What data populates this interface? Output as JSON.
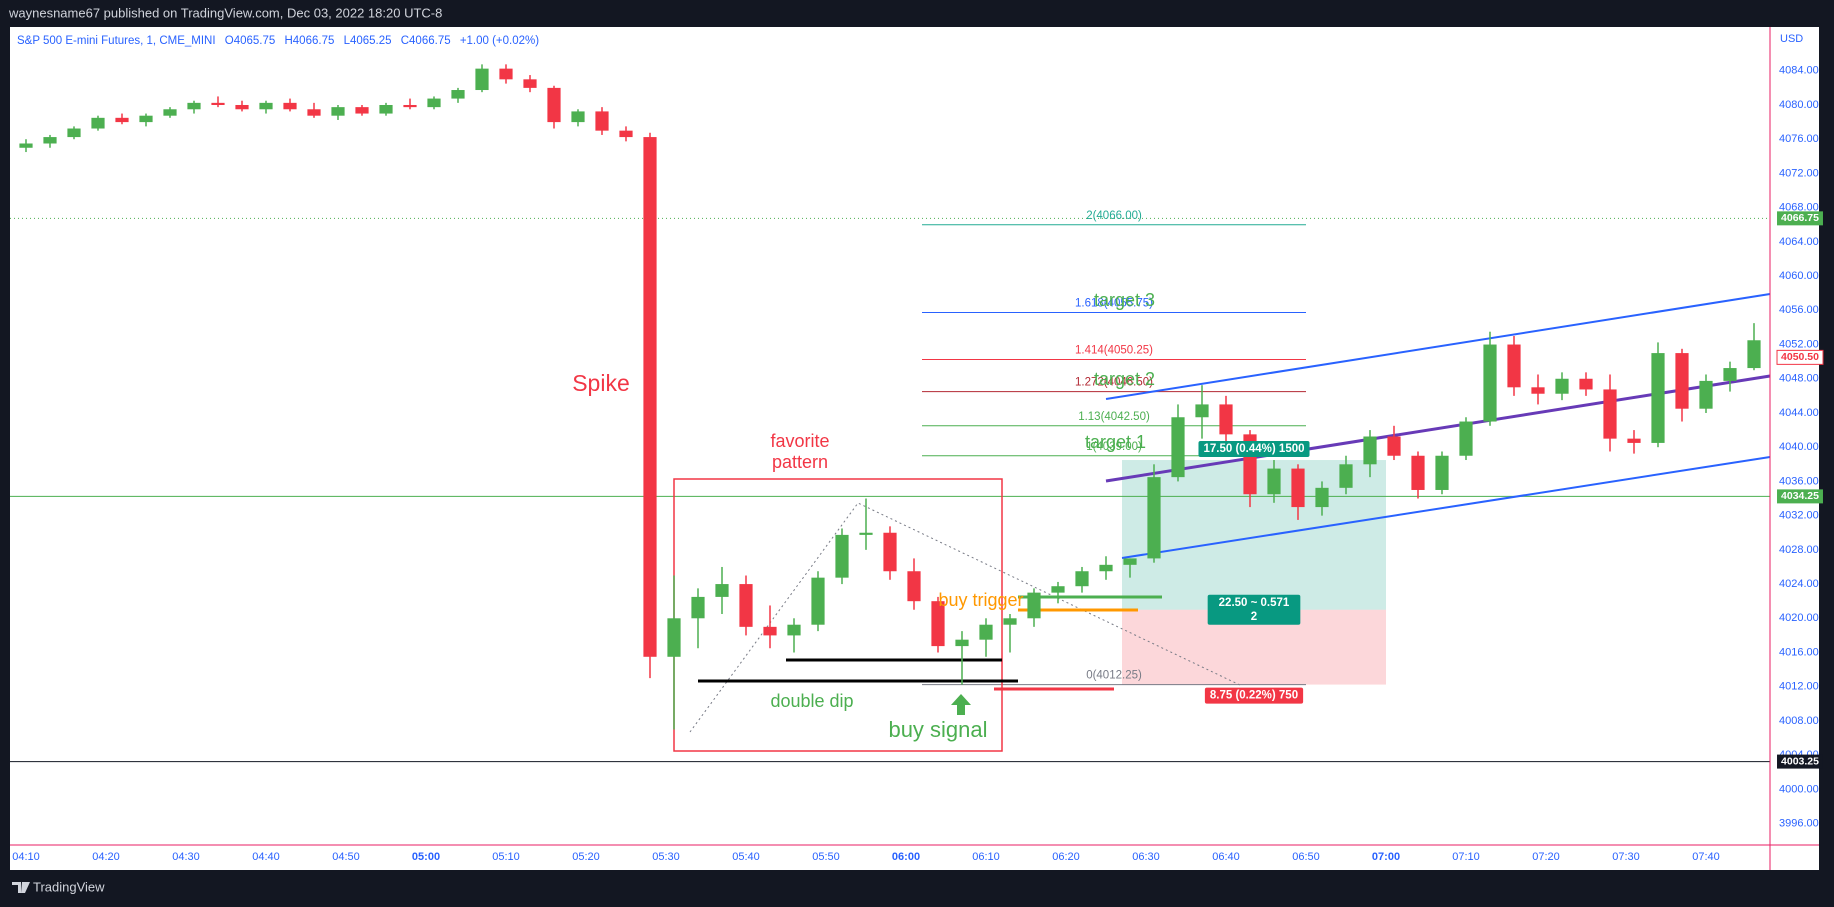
{
  "header": {
    "published": "waynesname67 published on TradingView.com, Dec 03, 2022 18:20 UTC-8"
  },
  "footer": {
    "brand": "TradingView"
  },
  "chart_data": {
    "type": "candlestick",
    "title": "S&P 500 E-mini Futures, 1, CME_MINI",
    "legend_values": [
      "O4065.75",
      "H4066.75",
      "L4065.25",
      "C4066.75",
      "+1.00 (+0.02%)"
    ],
    "currency": "USD",
    "up_color": "#4caf50",
    "down_color": "#f23645",
    "x": [
      "04:10",
      "04:13",
      "04:16",
      "04:19",
      "04:22",
      "04:25",
      "04:28",
      "04:31",
      "04:34",
      "04:37",
      "04:40",
      "04:43",
      "04:46",
      "04:49",
      "04:52",
      "04:55",
      "04:58",
      "05:01",
      "05:04",
      "05:07",
      "05:10",
      "05:13",
      "05:16",
      "05:19",
      "05:22",
      "05:25",
      "05:28",
      "05:31",
      "05:34",
      "05:37",
      "05:40",
      "05:43",
      "05:46",
      "05:49",
      "05:52",
      "05:55",
      "05:58",
      "06:01",
      "06:04",
      "06:07",
      "06:10",
      "06:13",
      "06:16",
      "06:19",
      "06:22",
      "06:25",
      "06:28",
      "06:31",
      "06:34",
      "06:37",
      "06:40",
      "06:43",
      "06:46",
      "06:49",
      "06:52",
      "06:55",
      "06:58",
      "07:01",
      "07:04",
      "07:07",
      "07:10",
      "07:13",
      "07:16",
      "07:19",
      "07:22",
      "07:25",
      "07:28",
      "07:31",
      "07:34",
      "07:37",
      "07:40",
      "07:43",
      "07:46"
    ],
    "open": [
      4075.0,
      4075.5,
      4076.25,
      4077.25,
      4078.5,
      4078.0,
      4078.75,
      4079.5,
      4080.25,
      4080.0,
      4079.5,
      4080.25,
      4079.5,
      4078.75,
      4079.75,
      4079.0,
      4080.0,
      4079.75,
      4080.75,
      4081.75,
      4084.25,
      4083.0,
      4082.0,
      4078.0,
      4079.25,
      4077.0,
      4076.25,
      4015.5,
      4020.0,
      4022.5,
      4024.0,
      4019.0,
      4018.0,
      4019.25,
      4024.75,
      4029.75,
      4030.0,
      4025.5,
      4022.0,
      4016.75,
      4017.5,
      4019.25,
      4020.0,
      4023.0,
      4023.75,
      4025.5,
      4026.25,
      4027.0,
      4036.5,
      4043.5,
      4045.0,
      4041.5,
      4034.5,
      4037.5,
      4033.0,
      4035.25,
      4038.0,
      4041.25,
      4039.0,
      4035.0,
      4039.0,
      4043.0,
      4052.0,
      4047.0,
      4046.25,
      4048.0,
      4046.75,
      4041.0,
      4040.5,
      4051.0,
      4044.5,
      4047.75,
      4049.25
    ],
    "high": [
      4076.0,
      4076.5,
      4077.5,
      4078.75,
      4079.0,
      4079.0,
      4079.75,
      4080.5,
      4081.0,
      4080.5,
      4080.5,
      4080.75,
      4080.25,
      4080.0,
      4080.0,
      4080.25,
      4080.75,
      4081.0,
      4082.0,
      4084.75,
      4084.75,
      4083.5,
      4082.25,
      4079.5,
      4079.75,
      4077.5,
      4076.75,
      4025.0,
      4023.5,
      4026.0,
      4025.0,
      4021.5,
      4020.0,
      4025.5,
      4030.5,
      4034.0,
      4030.75,
      4027.0,
      4022.5,
      4018.5,
      4020.0,
      4020.5,
      4023.5,
      4024.25,
      4026.0,
      4027.25,
      4027.0,
      4038.0,
      4045.0,
      4047.25,
      4046.0,
      4042.0,
      4038.5,
      4038.0,
      4036.0,
      4039.0,
      4042.0,
      4042.5,
      4039.5,
      4039.5,
      4043.5,
      4053.5,
      4053.0,
      4048.5,
      4048.75,
      4048.75,
      4048.5,
      4042.0,
      4052.25,
      4051.5,
      4048.5,
      4050.0,
      4054.5
    ],
    "low": [
      4074.5,
      4075.0,
      4076.0,
      4077.0,
      4077.75,
      4077.5,
      4078.5,
      4079.0,
      4079.75,
      4079.25,
      4079.0,
      4079.25,
      4078.5,
      4078.25,
      4078.75,
      4078.75,
      4079.5,
      4079.5,
      4080.25,
      4081.5,
      4082.5,
      4081.5,
      4077.25,
      4077.5,
      4076.5,
      4075.75,
      4013.0,
      4007.0,
      4016.5,
      4020.5,
      4018.0,
      4016.5,
      4016.0,
      4018.5,
      4024.0,
      4028.0,
      4024.5,
      4021.0,
      4016.0,
      4012.25,
      4015.5,
      4016.0,
      4019.0,
      4021.75,
      4023.0,
      4024.5,
      4024.75,
      4026.5,
      4036.0,
      4041.0,
      4040.5,
      4033.0,
      4033.5,
      4031.5,
      4032.0,
      4034.5,
      4036.5,
      4038.5,
      4034.0,
      4034.5,
      4038.5,
      4042.5,
      4046.0,
      4045.0,
      4045.5,
      4046.0,
      4039.5,
      4039.25,
      4040.0,
      4043.0,
      4044.0,
      4046.5,
      4049.0
    ],
    "close": [
      4075.5,
      4076.25,
      4077.25,
      4078.5,
      4078.0,
      4078.75,
      4079.5,
      4080.25,
      4080.0,
      4079.5,
      4080.25,
      4079.5,
      4078.75,
      4079.75,
      4079.0,
      4080.0,
      4079.75,
      4080.75,
      4081.75,
      4084.25,
      4083.0,
      4082.0,
      4078.0,
      4079.25,
      4077.0,
      4076.25,
      4015.5,
      4020.0,
      4022.5,
      4024.0,
      4019.0,
      4018.0,
      4019.25,
      4024.75,
      4029.75,
      4030.0,
      4025.5,
      4022.0,
      4016.75,
      4017.5,
      4019.25,
      4020.0,
      4023.0,
      4023.75,
      4025.5,
      4026.25,
      4027.0,
      4036.5,
      4043.5,
      4045.0,
      4041.5,
      4034.5,
      4037.5,
      4033.0,
      4035.25,
      4038.0,
      4041.25,
      4039.0,
      4035.0,
      4039.0,
      4043.0,
      4052.0,
      4047.0,
      4046.25,
      4048.0,
      4046.75,
      4041.0,
      4040.5,
      4051.0,
      4044.5,
      4047.75,
      4049.25,
      4052.5
    ],
    "xlim": [
      "04:08",
      "07:48"
    ],
    "xticks": [
      "04:10",
      "04:20",
      "04:30",
      "04:40",
      "04:50",
      "05:00",
      "05:10",
      "05:20",
      "05:30",
      "05:40",
      "05:50",
      "06:00",
      "06:10",
      "06:20",
      "06:30",
      "06:40",
      "06:50",
      "07:00",
      "07:10",
      "07:20",
      "07:30",
      "07:40"
    ],
    "ylim": [
      3993.5,
      4089
    ],
    "yticks": [
      {
        "value": 4084,
        "label": "4084.00"
      },
      {
        "value": 4080,
        "label": "4080.00"
      },
      {
        "value": 4076,
        "label": "4076.00"
      },
      {
        "value": 4072,
        "label": "4072.00"
      },
      {
        "value": 4068,
        "label": "4068.00"
      },
      {
        "value": 4064,
        "label": "4064.00"
      },
      {
        "value": 4060,
        "label": "4060.00"
      },
      {
        "value": 4056,
        "label": "4056.00"
      },
      {
        "value": 4052,
        "label": "4052.00"
      },
      {
        "value": 4048,
        "label": "4048.00"
      },
      {
        "value": 4044,
        "label": "4044.00"
      },
      {
        "value": 4040,
        "label": "4040.00"
      },
      {
        "value": 4036,
        "label": "4036.00"
      },
      {
        "value": 4032,
        "label": "4032.00"
      },
      {
        "value": 4028,
        "label": "4028.00"
      },
      {
        "value": 4024,
        "label": "4024.00"
      },
      {
        "value": 4020,
        "label": "4020.00"
      },
      {
        "value": 4016,
        "label": "4016.00"
      },
      {
        "value": 4012,
        "label": "4012.00"
      },
      {
        "value": 4008,
        "label": "4008.00"
      },
      {
        "value": 4004,
        "label": "4004.00"
      },
      {
        "value": 4000,
        "label": "4000.00"
      },
      {
        "value": 3996,
        "label": "3996.00"
      }
    ],
    "grid": false,
    "price_lines": [
      {
        "value": 4066.75,
        "label": "4066.75",
        "color": "#4caf50",
        "style": "dotted",
        "line": true
      },
      {
        "value": 4050.5,
        "label": "4050.50",
        "color": "#f23645",
        "style": "outline",
        "line": false
      },
      {
        "value": 4034.25,
        "label": "4034.25",
        "color": "#4caf50",
        "style": "solid",
        "line": true
      },
      {
        "value": 4003.25,
        "label": "4003.25",
        "color": "#131722",
        "style": "solid",
        "line": true
      }
    ],
    "fib": {
      "x": [
        "06:02",
        "06:50"
      ],
      "levels": [
        {
          "value": 4066.0,
          "label": "2(4066.00)",
          "color": "#22ab94"
        },
        {
          "value": 4055.75,
          "label": "1.618(4055.75)",
          "color": "#2962ff"
        },
        {
          "value": 4050.25,
          "label": "1.414(4050.25)",
          "color": "#f23645"
        },
        {
          "value": 4046.5,
          "label": "1.272(4046.50)",
          "color": "#b22833"
        },
        {
          "value": 4042.5,
          "label": "1.13(4042.50)",
          "color": "#4caf50"
        },
        {
          "value": 4039.0,
          "label": "1(4039.00)",
          "color": "#4caf50"
        },
        {
          "value": 4012.25,
          "label": "0(4012.25)",
          "color": "#787b86"
        }
      ]
    },
    "position": {
      "x": [
        "06:27",
        "07:00"
      ],
      "entry": 4021.0,
      "target": 4038.5,
      "stop": 4012.25,
      "target_label": "17.50 (0.44%) 1500",
      "ratio_label": [
        "22.50 ~ 0.571",
        "2"
      ],
      "stop_label": "8.75 (0.22%) 750"
    },
    "annotations": {
      "spike": "Spike",
      "favorite_pattern": [
        "favorite",
        "pattern"
      ],
      "double_dip": "double dip",
      "buy_signal": "buy signal",
      "buy_trigger": "buy trigger",
      "target_1": "target 1",
      "target_2": "target 2",
      "target_3": "target 3"
    }
  }
}
